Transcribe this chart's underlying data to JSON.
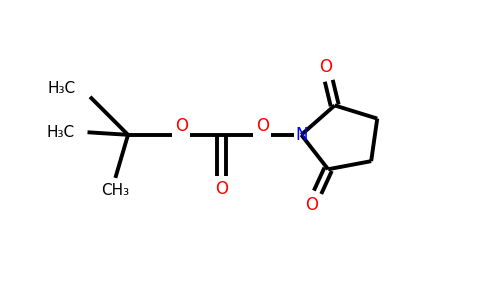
{
  "background_color": "#ffffff",
  "line_color": "#000000",
  "oxygen_color": "#ff0000",
  "nitrogen_color": "#0000ff",
  "line_width": 2.8,
  "figsize": [
    4.84,
    3.0
  ],
  "dpi": 100,
  "xlim": [
    0,
    9.5
  ],
  "ylim": [
    0,
    5.8
  ]
}
